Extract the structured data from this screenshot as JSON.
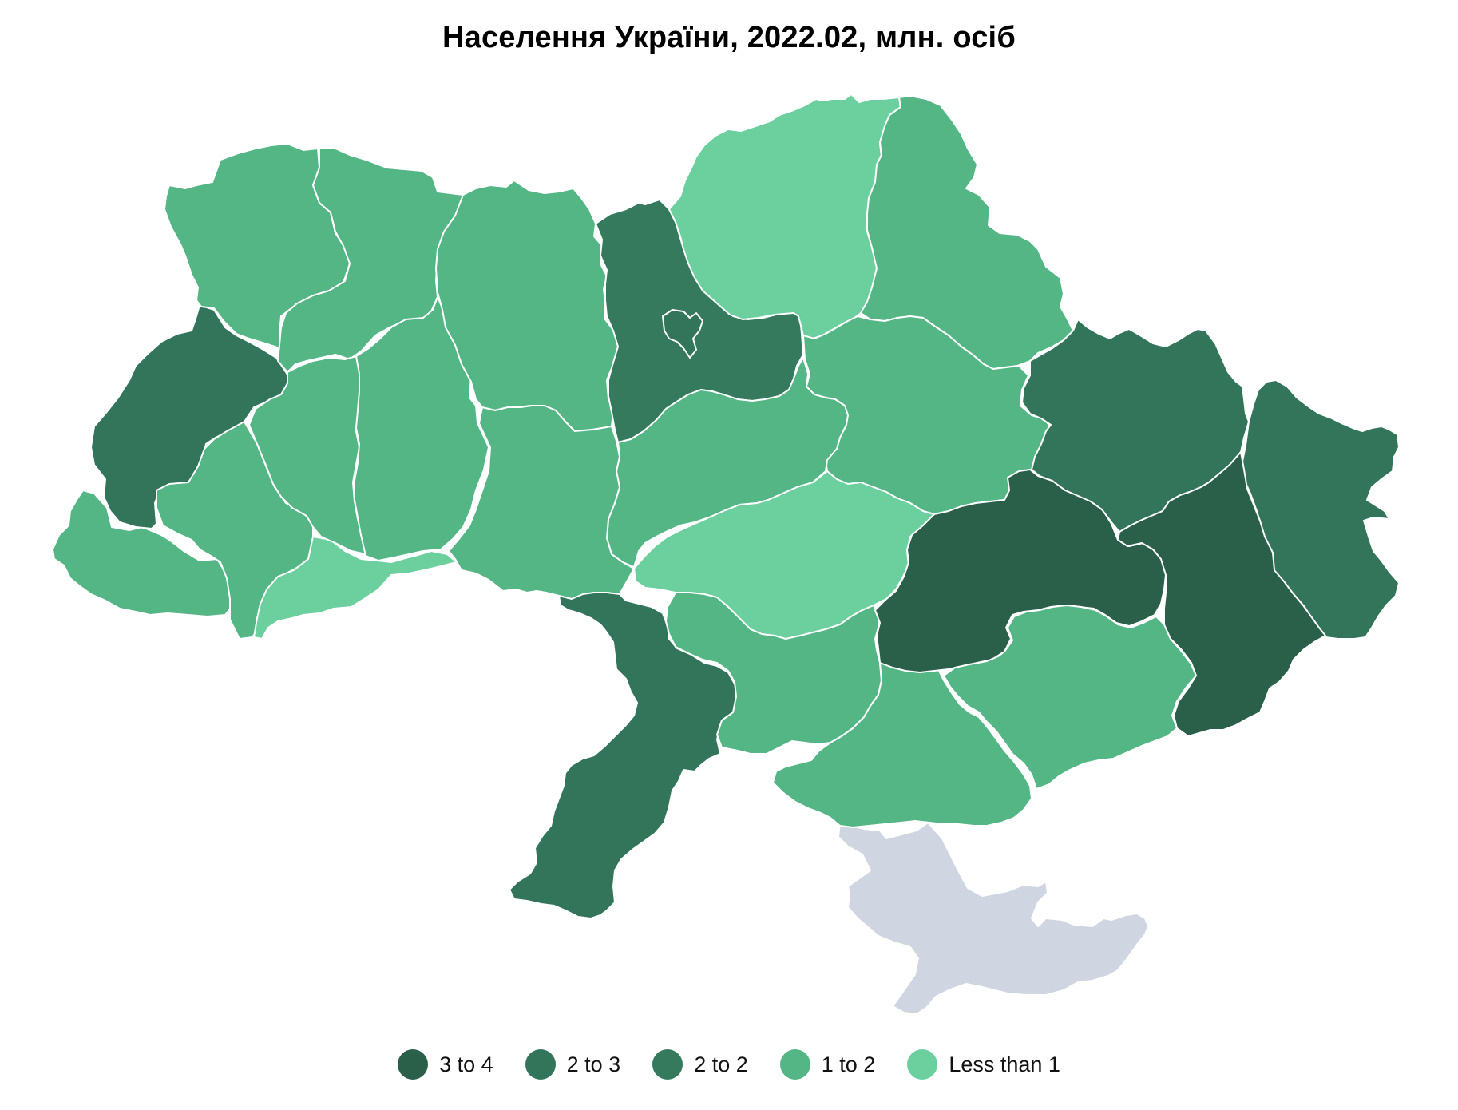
{
  "title": "Населення України, 2022.02, млн. осіб",
  "colors": {
    "c1": "#2a5f4a",
    "c2": "#33755a",
    "c3": "#357a5c",
    "c4": "#54b585",
    "c5": "#6bcf9e",
    "crimea": "#cfd6e2"
  },
  "legend": [
    {
      "label": "3 to 4",
      "color": "#2a5f4a"
    },
    {
      "label": "2 to 3",
      "color": "#33755a"
    },
    {
      "label": "2 to 2",
      "color": "#357a5c"
    },
    {
      "label": "1 to 2",
      "color": "#54b585"
    },
    {
      "label": "Less than 1",
      "color": "#6bcf9e"
    }
  ]
}
